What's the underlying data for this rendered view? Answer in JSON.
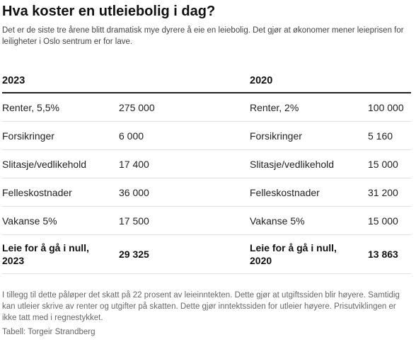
{
  "title": "Hva koster en utleiebolig i dag?",
  "lede": "Det er de siste tre årene blitt dramatisk mye dyrere å eie en leiebolig. Det gjør at økonomer mener leieprisen for leiligheter i Oslo sentrum er for lave.",
  "headers": {
    "left": "2023",
    "right": "2020"
  },
  "rows": [
    {
      "l_label": "Renter, 5,5%",
      "l_value": "275 000",
      "r_label": "Renter, 2%",
      "r_value": "100 000"
    },
    {
      "l_label": "Forsikringer",
      "l_value": "6 000",
      "r_label": "Forsikringer",
      "r_value": "5 160"
    },
    {
      "l_label": "Slitasje/vedlikehold",
      "l_value": "17 400",
      "r_label": "Slitasje/vedlikehold",
      "r_value": "15 000"
    },
    {
      "l_label": "Felleskostnader",
      "l_value": "36 000",
      "r_label": "Felleskostnader",
      "r_value": "31 200"
    },
    {
      "l_label": "Vakanse 5%",
      "l_value": "17 500",
      "r_label": "Vakanse 5%",
      "r_value": "15 000"
    }
  ],
  "total": {
    "l_label": "Leie for å gå i null, 2023",
    "l_value": "29 325",
    "r_label": "Leie for å gå i null, 2020",
    "r_value": "13 863"
  },
  "notes": "I tillegg til dette påløper det skatt på 22 prosent av leieinntekten. Dette gjør at utgiftssiden blir høyere. Samtidig kan utleier skrive av renter og utgifter på skatten. Dette gjør inntektssiden for utleier høyere. Prisutviklingen er ikke tatt med i regnestykket.",
  "source": "Tabell: Torgeir Strandberg"
}
